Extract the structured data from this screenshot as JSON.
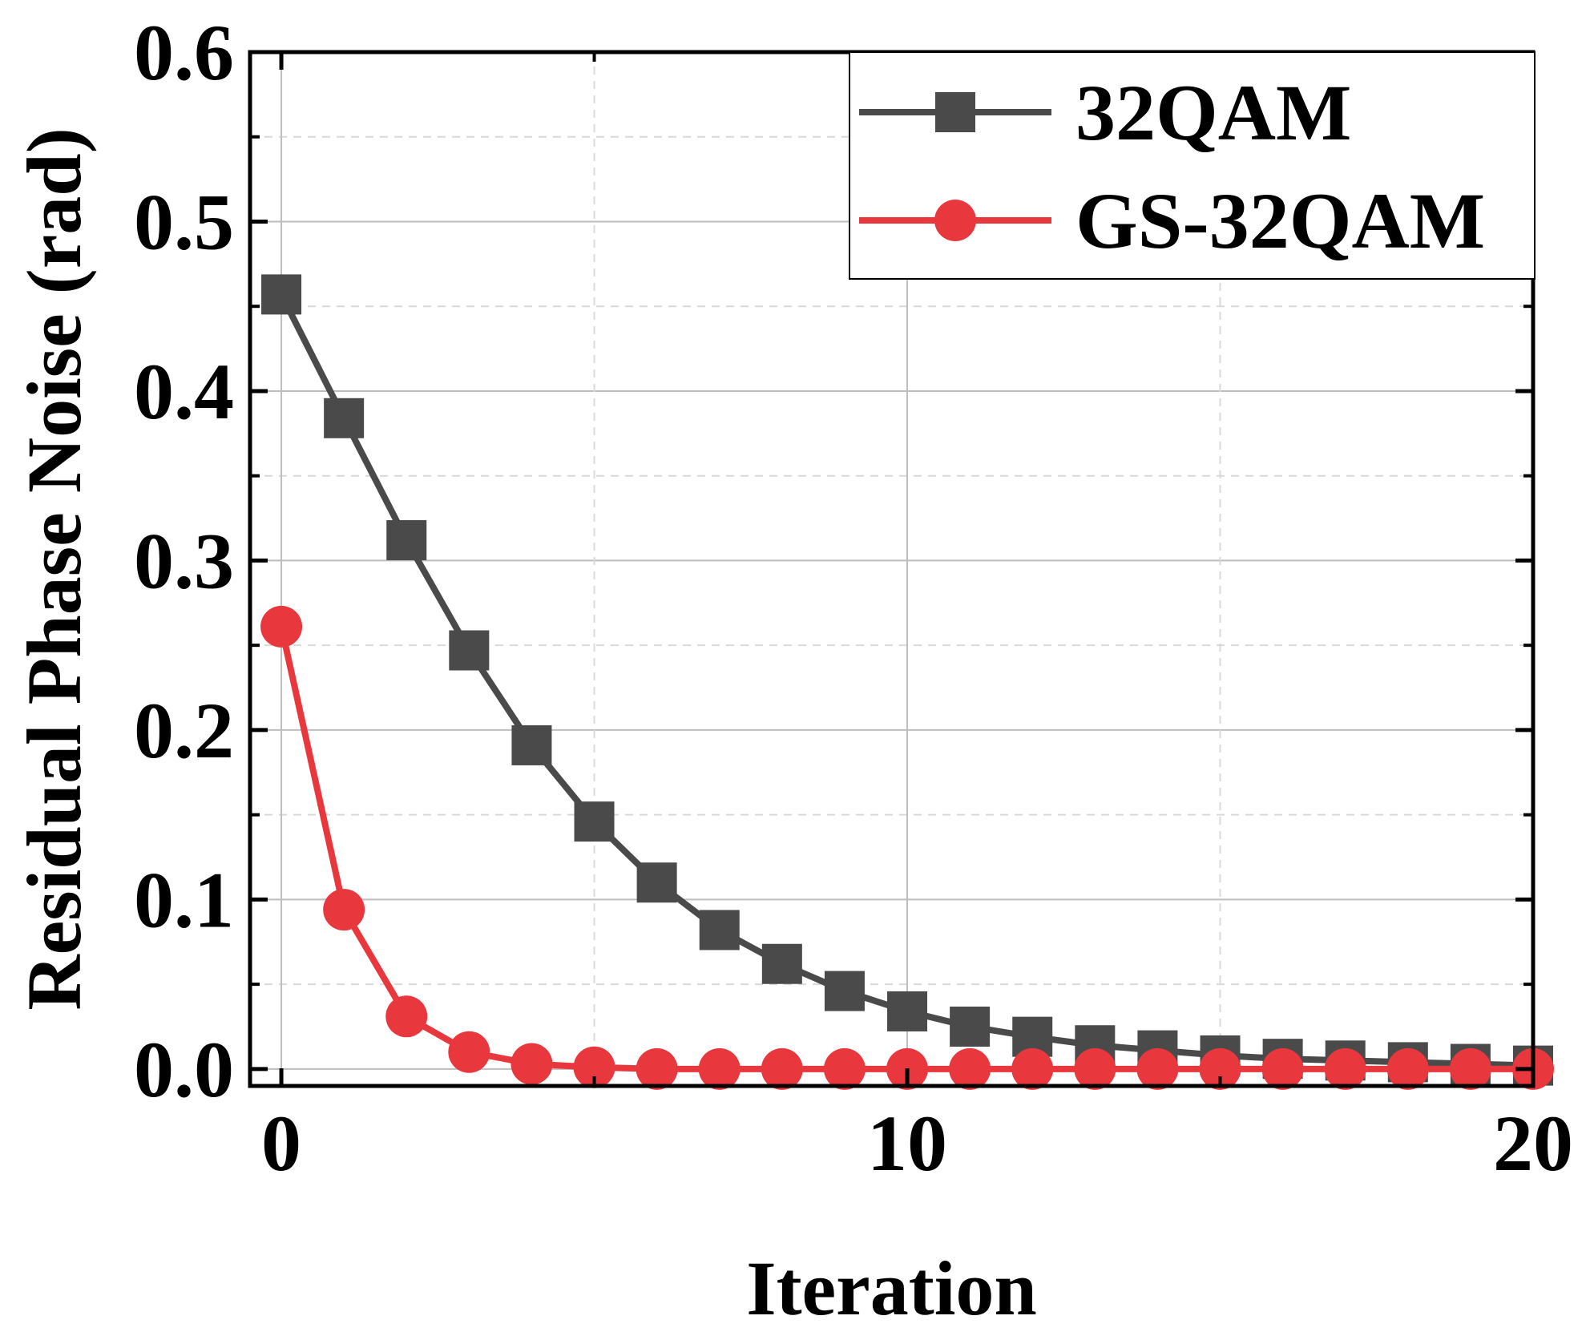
{
  "chart_data": {
    "type": "line",
    "title": "",
    "xlabel": "Iteration",
    "ylabel": "Residual Phase Noise (rad)",
    "xlim": [
      -0.5,
      20
    ],
    "ylim": [
      -0.01,
      0.6
    ],
    "xticks": [
      0,
      10,
      20
    ],
    "xtick_labels": [
      "0",
      "10",
      "20"
    ],
    "xminor": [
      5,
      15
    ],
    "yticks": [
      0.0,
      0.1,
      0.2,
      0.3,
      0.4,
      0.5,
      0.6
    ],
    "ytick_labels": [
      "0.0",
      "0.1",
      "0.2",
      "0.3",
      "0.4",
      "0.5",
      "0.6"
    ],
    "yminor": [
      0.05,
      0.15,
      0.25,
      0.35,
      0.45,
      0.55
    ],
    "grid": true,
    "legend_position": "top-right",
    "x": [
      0,
      1,
      2,
      3,
      4,
      5,
      6,
      7,
      8,
      9,
      10,
      11,
      12,
      13,
      14,
      15,
      16,
      17,
      18,
      19,
      20
    ],
    "series": [
      {
        "name": "32QAM",
        "marker": "square",
        "color": "#4a4a4a",
        "values": [
          0.457,
          0.384,
          0.312,
          0.247,
          0.191,
          0.146,
          0.11,
          0.082,
          0.062,
          0.046,
          0.034,
          0.025,
          0.019,
          0.014,
          0.011,
          0.008,
          0.006,
          0.005,
          0.004,
          0.003,
          0.002
        ]
      },
      {
        "name": "GS-32QAM",
        "marker": "circle",
        "color": "#e8383d",
        "values": [
          0.261,
          0.094,
          0.031,
          0.01,
          0.003,
          0.001,
          0.0,
          0.0,
          0.0,
          0.0,
          0.0,
          0.0,
          0.0,
          0.0,
          0.0,
          0.0,
          0.0,
          0.0,
          0.0,
          0.0,
          0.0
        ]
      }
    ]
  }
}
